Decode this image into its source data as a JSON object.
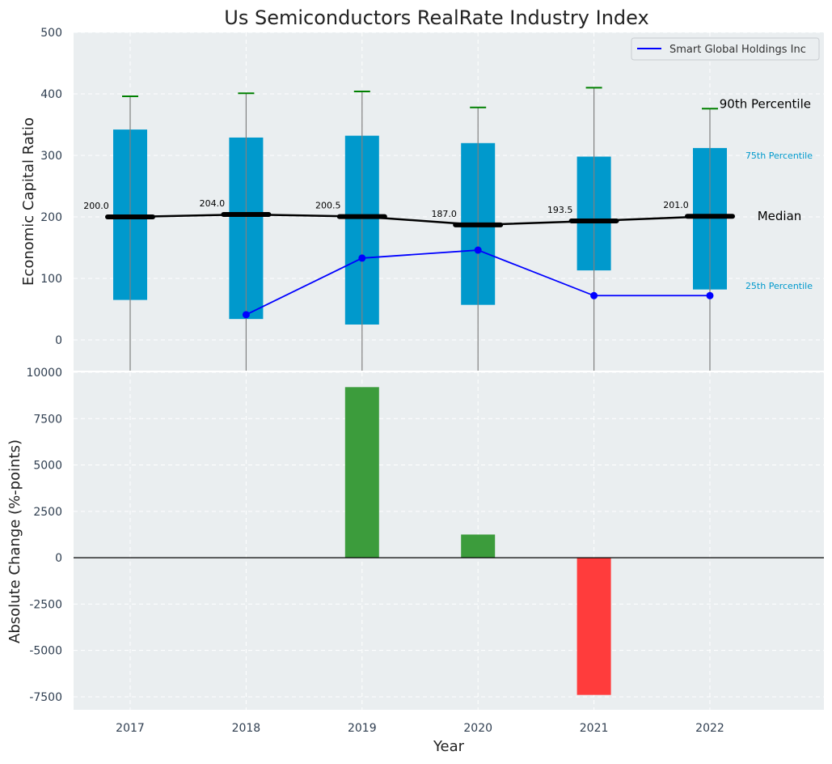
{
  "chart_data": [
    {
      "type": "box",
      "title": "Us Semiconductors RealRate Industry Index",
      "ylabel": "Economic Capital Ratio",
      "ylim": [
        -50,
        500
      ],
      "yticks": [
        0,
        100,
        200,
        300,
        400,
        500
      ],
      "grid": true,
      "legend_position": "top-right",
      "categories": [
        "2017",
        "2018",
        "2019",
        "2020",
        "2021",
        "2022"
      ],
      "boxes": [
        {
          "year": "2017",
          "p25": 65,
          "median": 200.0,
          "p75": 342,
          "p90": 396,
          "median_label": "200.0"
        },
        {
          "year": "2018",
          "p25": 34,
          "median": 204.0,
          "p75": 329,
          "p90": 401,
          "median_label": "204.0"
        },
        {
          "year": "2019",
          "p25": 25,
          "median": 200.5,
          "p75": 332,
          "p90": 404,
          "median_label": "200.5"
        },
        {
          "year": "2020",
          "p25": 57,
          "median": 187.0,
          "p75": 320,
          "p90": 378,
          "median_label": "187.0"
        },
        {
          "year": "2021",
          "p25": 113,
          "median": 193.5,
          "p75": 298,
          "p90": 410,
          "median_label": "193.5"
        },
        {
          "year": "2022",
          "p25": 82,
          "median": 201.0,
          "p75": 312,
          "p90": 376,
          "median_label": "201.0"
        }
      ],
      "series": [
        {
          "name": "Smart Global Holdings Inc",
          "color": "#0000ff",
          "x": [
            "2018",
            "2019",
            "2020",
            "2021",
            "2022"
          ],
          "values": [
            41,
            133,
            146,
            72,
            72
          ]
        }
      ],
      "annotations": {
        "p90": "90th Percentile",
        "p75": "75th Percentile",
        "median": "Median",
        "p25": "25th Percentile"
      },
      "colors": {
        "box": "#0099cc",
        "median": "#000000",
        "p90_cap": "#008000",
        "whisker": "#808080",
        "series": "#0000ff"
      }
    },
    {
      "type": "bar",
      "xlabel": "Year",
      "ylabel": "Absolute Change (%-points)",
      "ylim": [
        -8200,
        10000
      ],
      "yticks": [
        -7500,
        -5000,
        -2500,
        0,
        2500,
        5000,
        7500,
        10000
      ],
      "grid": true,
      "categories": [
        "2017",
        "2018",
        "2019",
        "2020",
        "2021",
        "2022"
      ],
      "values": [
        0,
        0,
        9200,
        1250,
        -7400,
        0
      ],
      "colors": {
        "positive": "#3c9c3c",
        "negative": "#ff3c3c"
      }
    }
  ]
}
